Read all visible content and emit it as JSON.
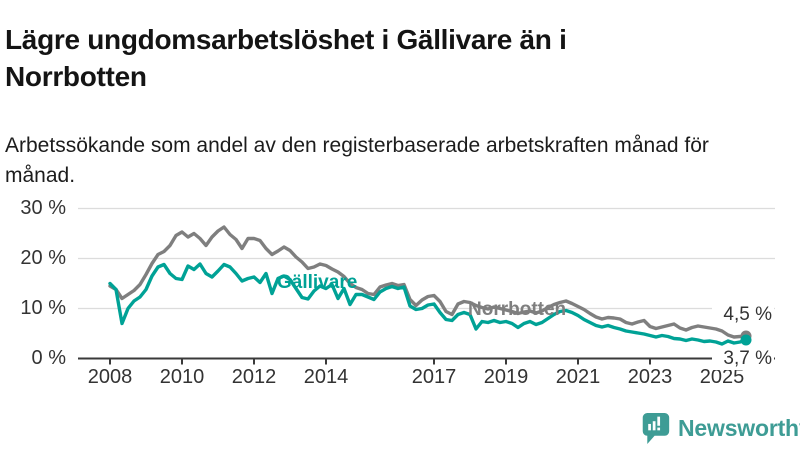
{
  "header": {
    "title": "Lägre ungdomsarbetslöshet i Gällivare än i Norrbotten",
    "subtitle": "Arbetssökande som andel av den registerbaserade arbetskraften månad för månad."
  },
  "chart_data": {
    "type": "line",
    "unit": "%",
    "x_start_year": 2008.0,
    "x_step_years": 0.1666667,
    "ylim": [
      0,
      32
    ],
    "grid": "horizontal",
    "x_ticks": [
      {
        "year": 2008,
        "label": "2008"
      },
      {
        "year": 2010,
        "label": "2010"
      },
      {
        "year": 2012,
        "label": "2012"
      },
      {
        "year": 2014,
        "label": "2014"
      },
      {
        "year": 2017,
        "label": "2017"
      },
      {
        "year": 2019,
        "label": "2019"
      },
      {
        "year": 2021,
        "label": "2021"
      },
      {
        "year": 2023,
        "label": "2023"
      },
      {
        "year": 2025,
        "label": "2025"
      }
    ],
    "y_ticks": [
      {
        "value": 0,
        "label": "0 %"
      },
      {
        "value": 10,
        "label": "10 %"
      },
      {
        "value": 20,
        "label": "20 %"
      },
      {
        "value": 30,
        "label": "30 %"
      }
    ],
    "series": [
      {
        "name": "Norrbotten",
        "color": "#7f7f7f",
        "end_label": "4,5 %",
        "end_value": 4.5,
        "values": [
          14.5,
          13.8,
          12.0,
          12.8,
          13.6,
          14.8,
          16.8,
          19.0,
          20.8,
          21.4,
          22.6,
          24.6,
          25.3,
          24.3,
          25.0,
          24.0,
          22.6,
          24.3,
          25.5,
          26.3,
          24.8,
          23.8,
          22.0,
          24.0,
          24.0,
          23.6,
          22.0,
          20.8,
          21.5,
          22.3,
          21.6,
          20.3,
          19.3,
          18.0,
          18.3,
          18.9,
          18.6,
          17.9,
          17.3,
          16.4,
          15.0,
          14.2,
          13.8,
          13.0,
          12.8,
          14.3,
          14.7,
          15.0,
          14.6,
          14.8,
          11.8,
          10.6,
          11.7,
          12.4,
          12.6,
          11.4,
          9.4,
          8.8,
          10.9,
          11.4,
          11.2,
          10.6,
          10.2,
          9.9,
          10.3,
          10.0,
          9.7,
          9.4,
          9.0,
          9.3,
          9.5,
          9.1,
          9.5,
          10.2,
          10.8,
          11.2,
          11.5,
          11.0,
          10.4,
          9.8,
          9.0,
          8.3,
          7.9,
          8.2,
          8.1,
          7.9,
          7.2,
          6.9,
          7.3,
          7.6,
          6.4,
          6.0,
          6.3,
          6.6,
          6.9,
          6.1,
          5.7,
          6.2,
          6.5,
          6.3,
          6.1,
          5.9,
          5.5,
          4.7,
          4.3,
          4.4,
          4.5
        ]
      },
      {
        "name": "Gällivare",
        "color": "#00a296",
        "end_label": "3,7 %",
        "end_value": 3.7,
        "values": [
          15.0,
          13.8,
          7.0,
          10.0,
          11.5,
          12.3,
          13.8,
          16.5,
          18.3,
          18.8,
          17.0,
          16.0,
          15.8,
          18.5,
          17.8,
          18.9,
          17.0,
          16.3,
          17.5,
          18.8,
          18.3,
          17.0,
          15.5,
          16.0,
          16.3,
          15.2,
          17.0,
          13.0,
          16.0,
          16.5,
          15.8,
          14.0,
          12.2,
          11.9,
          13.5,
          14.5,
          14.0,
          14.8,
          12.0,
          14.0,
          10.8,
          12.8,
          12.8,
          12.3,
          11.8,
          13.3,
          14.0,
          14.4,
          14.0,
          14.3,
          10.5,
          9.8,
          10.0,
          10.7,
          10.9,
          9.2,
          7.8,
          7.6,
          8.8,
          9.2,
          8.8,
          5.9,
          7.4,
          7.2,
          7.6,
          7.2,
          7.4,
          7.0,
          6.2,
          7.0,
          7.4,
          6.8,
          7.2,
          8.0,
          8.8,
          9.4,
          9.6,
          9.2,
          8.6,
          7.8,
          7.2,
          6.6,
          6.3,
          6.6,
          6.2,
          5.9,
          5.5,
          5.3,
          5.1,
          4.9,
          4.6,
          4.3,
          4.6,
          4.4,
          4.0,
          3.9,
          3.6,
          3.9,
          3.7,
          3.4,
          3.5,
          3.3,
          2.9,
          3.5,
          3.1,
          3.3,
          3.7
        ]
      }
    ],
    "colors": {
      "axis": "#3a3a3a",
      "gridline": "#dcdcdc",
      "tick_text": "#333333"
    }
  },
  "footer": {
    "brand": "Newsworthy",
    "brand_color": "#3e9c95",
    "logo_icon": "bar-chart-speech-bubble-icon"
  }
}
